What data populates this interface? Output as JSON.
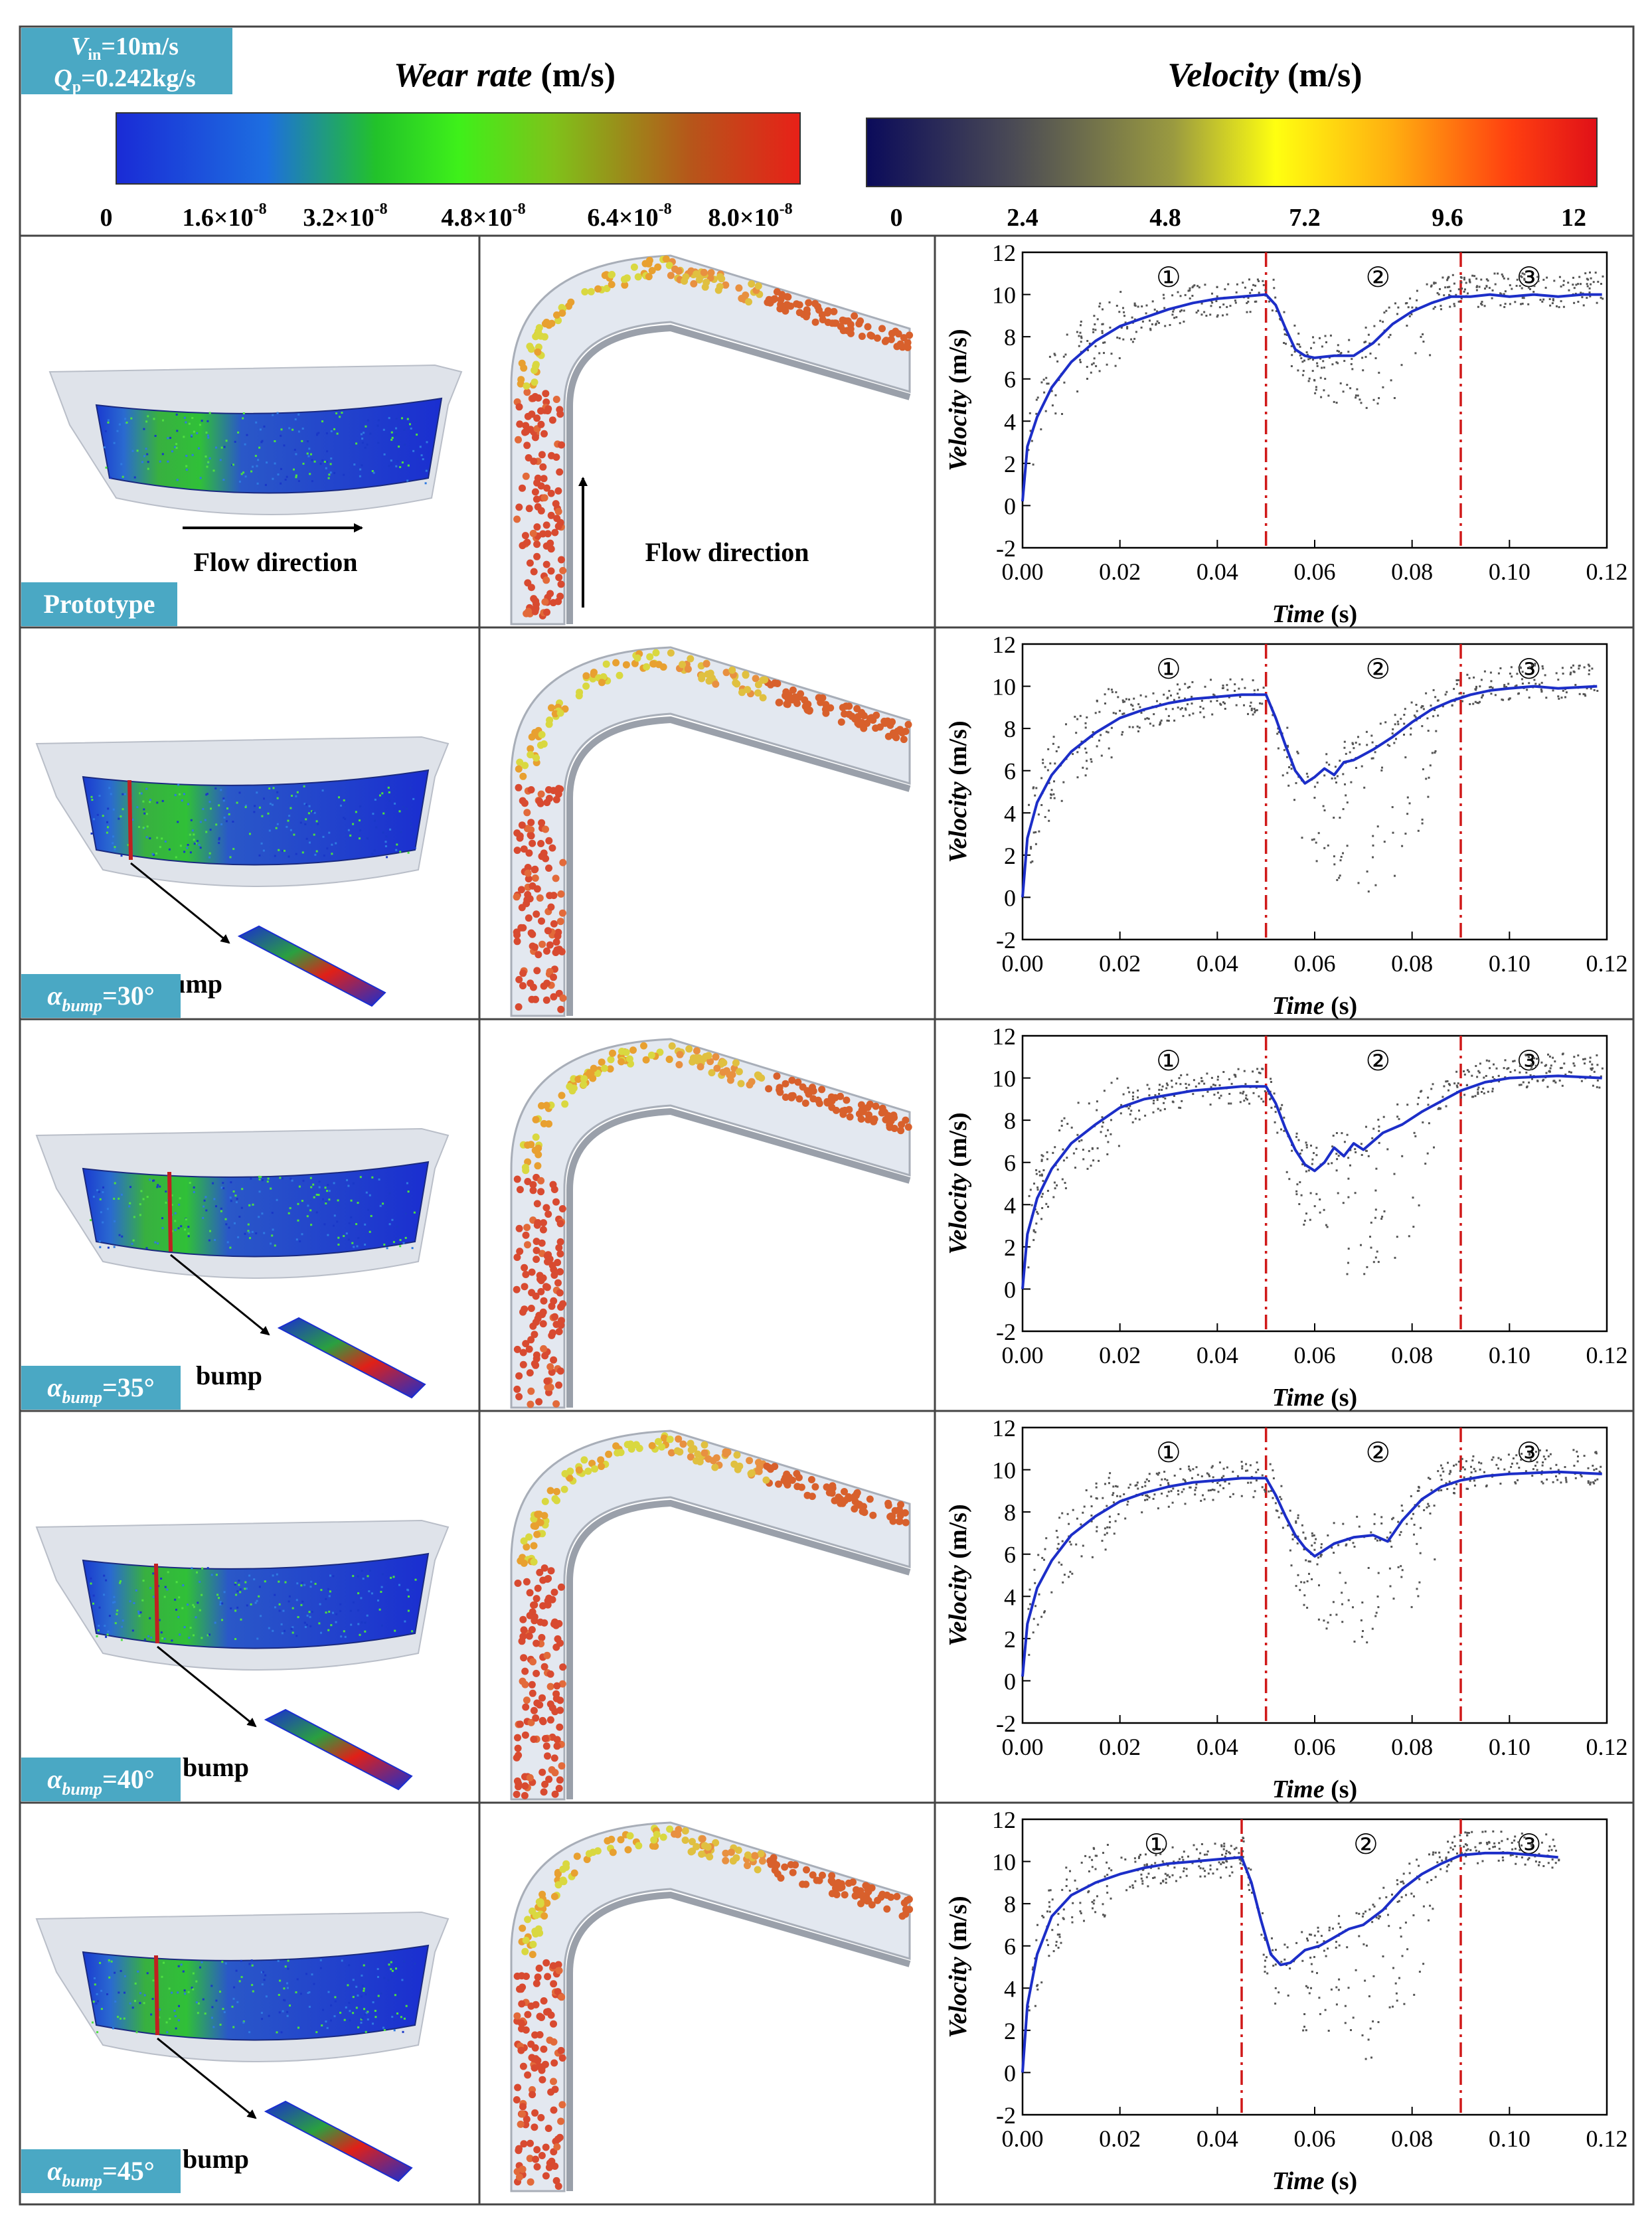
{
  "header": {
    "condition_line1": "V",
    "condition_line1_sub": "in",
    "condition_line1_rest": "=10m/s",
    "condition_line2": "Q",
    "condition_line2_sub": "p",
    "condition_line2_rest": "=0.242kg/s",
    "wear_title_italic": "Wear rate",
    "wear_title_unit": " (m/s)",
    "velocity_title_italic": "Velocity",
    "velocity_title_unit": " (m/s)",
    "wear_ticks": [
      "0",
      "1.6×10",
      "3.2×10",
      "4.8×10",
      "6.4×10",
      "8.0×10"
    ],
    "wear_tick_exp": "-8",
    "velocity_ticks": [
      "0",
      "2.4",
      "4.8",
      "7.2",
      "9.6",
      "12"
    ],
    "colors": {
      "wear_gradient": [
        "#1a2bd6",
        "#1d6ee0",
        "#22c22a",
        "#3ef01a",
        "#7fc21a",
        "#b6561a",
        "#e82018"
      ],
      "velocity_gradient": [
        "#0b0b5a",
        "#4a4a55",
        "#9a9a40",
        "#ffff10",
        "#ffae10",
        "#ff4010",
        "#e01018"
      ],
      "label_bg": "#4aa8c4",
      "fit_line": "#1c2ec8",
      "divider": "#d01818"
    }
  },
  "annotations": {
    "flow_direction": "Flow direction",
    "bump": "bump"
  },
  "rows": [
    {
      "label": "Prototype",
      "alpha": "",
      "has_bump": false
    },
    {
      "label": "α",
      "alpha": "30",
      "has_bump": true
    },
    {
      "label": "α",
      "alpha": "35",
      "has_bump": true
    },
    {
      "label": "α",
      "alpha": "40",
      "has_bump": true
    },
    {
      "label": "α",
      "alpha": "45",
      "has_bump": true
    }
  ],
  "row_label_sub": "bump",
  "row_label_eq": "=",
  "row_label_deg": "°",
  "chart_data": [
    {
      "type": "line",
      "title": "Prototype",
      "xlabel": "Time",
      "xlabel_unit": " (s)",
      "ylabel": "Velocity",
      "ylabel_unit": " (m/s)",
      "xlim": [
        0.0,
        0.12
      ],
      "ylim": [
        -2,
        12
      ],
      "xticks": [
        "0.00",
        "0.02",
        "0.04",
        "0.06",
        "0.08",
        "0.10",
        "0.12"
      ],
      "yticks": [
        "-2",
        "0",
        "2",
        "4",
        "6",
        "8",
        "10",
        "12"
      ],
      "stage_labels": [
        "①",
        "②",
        "③"
      ],
      "dividers": [
        0.05,
        0.09
      ],
      "x": [
        0.0,
        0.001,
        0.003,
        0.006,
        0.01,
        0.015,
        0.02,
        0.025,
        0.03,
        0.035,
        0.04,
        0.045,
        0.05,
        0.052,
        0.054,
        0.056,
        0.058,
        0.06,
        0.064,
        0.068,
        0.072,
        0.076,
        0.08,
        0.084,
        0.088,
        0.092,
        0.096,
        0.1,
        0.105,
        0.11,
        0.115,
        0.119
      ],
      "values": [
        0.2,
        2.8,
        4.2,
        5.6,
        6.8,
        7.8,
        8.5,
        8.9,
        9.3,
        9.6,
        9.8,
        9.9,
        10.0,
        9.5,
        8.4,
        7.4,
        7.1,
        7.0,
        7.1,
        7.1,
        7.7,
        8.6,
        9.2,
        9.6,
        9.9,
        9.9,
        10.0,
        9.9,
        10.0,
        9.9,
        10.0,
        10.0
      ],
      "scatter_dip_min": 4.6
    },
    {
      "type": "line",
      "title": "α bump=30°",
      "xlabel": "Time",
      "xlabel_unit": " (s)",
      "ylabel": "Velocity",
      "ylabel_unit": " (m/s)",
      "xlim": [
        0.0,
        0.12
      ],
      "ylim": [
        -2,
        12
      ],
      "xticks": [
        "0.00",
        "0.02",
        "0.04",
        "0.06",
        "0.08",
        "0.10",
        "0.12"
      ],
      "yticks": [
        "-2",
        "0",
        "2",
        "4",
        "6",
        "8",
        "10",
        "12"
      ],
      "stage_labels": [
        "①",
        "②",
        "③"
      ],
      "dividers": [
        0.05,
        0.09
      ],
      "x": [
        0.0,
        0.001,
        0.003,
        0.006,
        0.01,
        0.015,
        0.02,
        0.025,
        0.03,
        0.035,
        0.04,
        0.045,
        0.05,
        0.052,
        0.054,
        0.056,
        0.058,
        0.06,
        0.062,
        0.064,
        0.066,
        0.068,
        0.072,
        0.076,
        0.08,
        0.084,
        0.088,
        0.092,
        0.096,
        0.1,
        0.105,
        0.11,
        0.118
      ],
      "values": [
        0.0,
        2.8,
        4.5,
        5.8,
        6.9,
        7.8,
        8.5,
        8.9,
        9.2,
        9.4,
        9.5,
        9.6,
        9.6,
        8.5,
        7.2,
        6.0,
        5.4,
        5.7,
        6.1,
        5.8,
        6.4,
        6.5,
        7.0,
        7.6,
        8.3,
        8.9,
        9.3,
        9.6,
        9.8,
        9.9,
        10.0,
        9.9,
        10.0
      ],
      "scatter_dip_min": 0.1
    },
    {
      "type": "line",
      "title": "α bump=35°",
      "xlabel": "Time",
      "xlabel_unit": " (s)",
      "ylabel": "Velocity",
      "ylabel_unit": " (m/s)",
      "xlim": [
        0.0,
        0.12
      ],
      "ylim": [
        -2,
        12
      ],
      "xticks": [
        "0.00",
        "0.02",
        "0.04",
        "0.06",
        "0.08",
        "0.10",
        "0.12"
      ],
      "yticks": [
        "-2",
        "0",
        "2",
        "4",
        "6",
        "8",
        "10",
        "12"
      ],
      "stage_labels": [
        "①",
        "②",
        "③"
      ],
      "dividers": [
        0.05,
        0.09
      ],
      "x": [
        0.0,
        0.001,
        0.003,
        0.006,
        0.01,
        0.015,
        0.02,
        0.025,
        0.03,
        0.035,
        0.04,
        0.045,
        0.05,
        0.052,
        0.054,
        0.056,
        0.058,
        0.06,
        0.062,
        0.064,
        0.066,
        0.068,
        0.07,
        0.074,
        0.078,
        0.082,
        0.086,
        0.09,
        0.095,
        0.1,
        0.11,
        0.119
      ],
      "values": [
        0.0,
        2.6,
        4.3,
        5.7,
        6.9,
        7.8,
        8.6,
        9.0,
        9.2,
        9.4,
        9.5,
        9.6,
        9.6,
        8.8,
        7.6,
        6.6,
        5.9,
        5.6,
        6.0,
        6.7,
        6.3,
        6.9,
        6.6,
        7.4,
        7.8,
        8.4,
        8.9,
        9.4,
        9.8,
        10.0,
        10.1,
        10.0
      ],
      "scatter_dip_min": 0.4
    },
    {
      "type": "line",
      "title": "α bump=40°",
      "xlabel": "Time",
      "xlabel_unit": " (s)",
      "ylabel": "Velocity",
      "ylabel_unit": " (m/s)",
      "xlim": [
        0.0,
        0.12
      ],
      "ylim": [
        -2,
        12
      ],
      "xticks": [
        "0.00",
        "0.02",
        "0.04",
        "0.06",
        "0.08",
        "0.10",
        "0.12"
      ],
      "yticks": [
        "-2",
        "0",
        "2",
        "4",
        "6",
        "8",
        "10",
        "12"
      ],
      "stage_labels": [
        "①",
        "②",
        "③"
      ],
      "dividers": [
        0.05,
        0.09
      ],
      "x": [
        0.0,
        0.001,
        0.003,
        0.006,
        0.01,
        0.015,
        0.02,
        0.025,
        0.03,
        0.035,
        0.04,
        0.045,
        0.05,
        0.052,
        0.054,
        0.056,
        0.058,
        0.06,
        0.064,
        0.068,
        0.072,
        0.075,
        0.078,
        0.082,
        0.086,
        0.09,
        0.095,
        0.1,
        0.11,
        0.119
      ],
      "values": [
        0.2,
        2.7,
        4.4,
        5.7,
        6.9,
        7.8,
        8.5,
        8.9,
        9.2,
        9.4,
        9.5,
        9.6,
        9.6,
        8.8,
        7.8,
        6.9,
        6.3,
        5.9,
        6.5,
        6.8,
        6.9,
        6.6,
        7.6,
        8.6,
        9.2,
        9.5,
        9.7,
        9.8,
        9.9,
        9.8
      ],
      "scatter_dip_min": 1.4
    },
    {
      "type": "line",
      "title": "α bump=45°",
      "xlabel": "Time",
      "xlabel_unit": " (s)",
      "ylabel": "Velocity",
      "ylabel_unit": " (m/s)",
      "xlim": [
        0.0,
        0.12
      ],
      "ylim": [
        -2,
        12
      ],
      "xticks": [
        "0.00",
        "0.02",
        "0.04",
        "0.06",
        "0.08",
        "0.10",
        "0.12"
      ],
      "yticks": [
        "-2",
        "0",
        "2",
        "4",
        "6",
        "8",
        "10",
        "12"
      ],
      "stage_labels": [
        "①",
        "②",
        "③"
      ],
      "dividers": [
        0.045,
        0.09
      ],
      "x": [
        0.0,
        0.001,
        0.003,
        0.006,
        0.01,
        0.015,
        0.02,
        0.025,
        0.03,
        0.035,
        0.04,
        0.045,
        0.047,
        0.049,
        0.051,
        0.053,
        0.055,
        0.058,
        0.061,
        0.064,
        0.067,
        0.07,
        0.074,
        0.078,
        0.082,
        0.086,
        0.09,
        0.095,
        0.1,
        0.105,
        0.11
      ],
      "values": [
        0.0,
        3.2,
        5.6,
        7.4,
        8.4,
        9.0,
        9.4,
        9.7,
        9.9,
        10.0,
        10.1,
        10.2,
        9.0,
        7.2,
        5.6,
        5.1,
        5.2,
        5.8,
        6.0,
        6.4,
        6.8,
        7.0,
        7.7,
        8.7,
        9.4,
        9.9,
        10.3,
        10.4,
        10.4,
        10.3,
        10.2
      ],
      "scatter_dip_min": 0.5
    }
  ]
}
